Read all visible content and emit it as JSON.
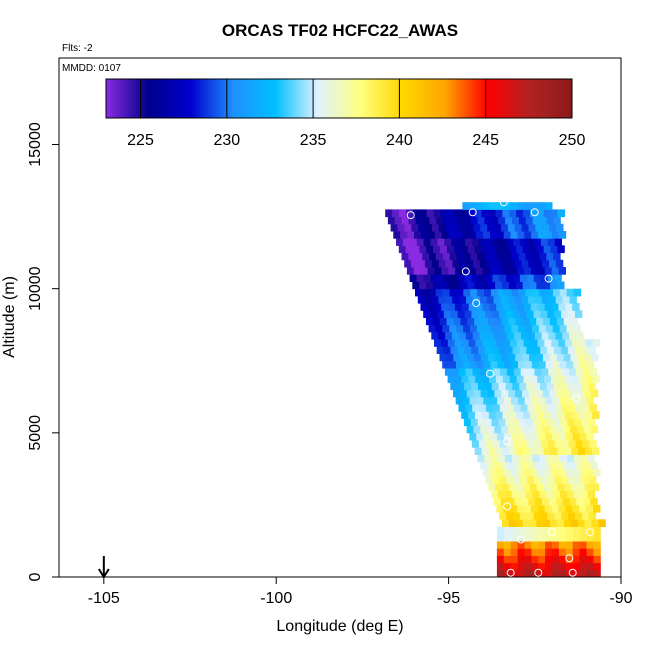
{
  "chart_data": {
    "type": "heatmap",
    "title": "ORCAS TF02 HCFC22_AWAS",
    "flights_label": "Flts: -2",
    "date_label": "MMDD: 0107",
    "xlabel": "Longitude (deg E)",
    "ylabel": "Altitude (m)",
    "xlim": [
      -106.3,
      -90
    ],
    "ylim": [
      0,
      18000
    ],
    "x_ticks": [
      -105,
      -100,
      -95,
      -90
    ],
    "y_ticks": [
      0,
      5000,
      10000,
      15000
    ],
    "x_tick_labels": [
      "-105",
      "-100",
      "-95",
      "-90"
    ],
    "y_tick_labels": [
      "0",
      "5000",
      "10000",
      "15000"
    ],
    "colorbar": {
      "range": [
        223,
        250
      ],
      "ticks": [
        225,
        230,
        235,
        240,
        245,
        250
      ],
      "tick_labels": [
        "225",
        "230",
        "235",
        "240",
        "245",
        "250"
      ],
      "colors": [
        "#8a2be2",
        "#00008b",
        "#0000cd",
        "#1e90ff",
        "#00bfff",
        "#dff2ff",
        "#ffff80",
        "#ffd700",
        "#ffa500",
        "#ff0000",
        "#b22222",
        "#8b1a1a"
      ]
    },
    "arrow_marker": {
      "x": -105,
      "label": ""
    },
    "samples": [
      {
        "lon": -94.3,
        "alt": 12650
      },
      {
        "lon": -92.5,
        "alt": 12650
      },
      {
        "lon": -96.1,
        "alt": 12550
      },
      {
        "lon": -93.4,
        "alt": 13000
      },
      {
        "lon": -94.5,
        "alt": 10600
      },
      {
        "lon": -94.2,
        "alt": 9500
      },
      {
        "lon": -92.1,
        "alt": 10350
      },
      {
        "lon": -93.8,
        "alt": 7050
      },
      {
        "lon": -91.3,
        "alt": 6200
      },
      {
        "lon": -93.3,
        "alt": 4700
      },
      {
        "lon": -93.3,
        "alt": 2450
      },
      {
        "lon": -92.0,
        "alt": 1550
      },
      {
        "lon": -90.9,
        "alt": 1550
      },
      {
        "lon": -92.9,
        "alt": 1300
      },
      {
        "lon": -91.5,
        "alt": 650
      },
      {
        "lon": -93.2,
        "alt": 150
      },
      {
        "lon": -92.4,
        "alt": 150
      },
      {
        "lon": -91.4,
        "alt": 150
      }
    ]
  }
}
